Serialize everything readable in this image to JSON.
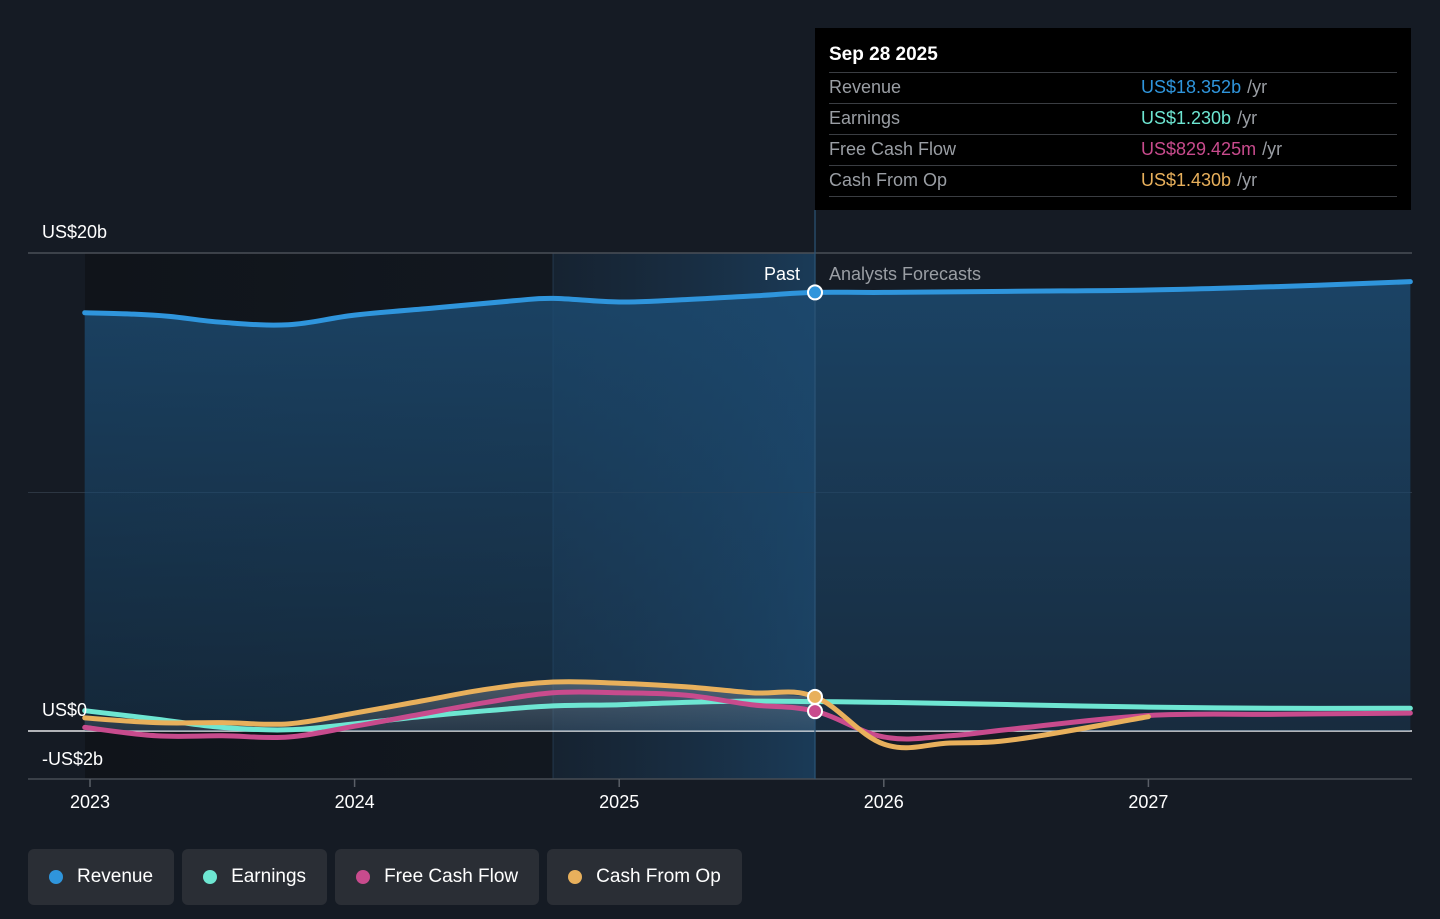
{
  "tooltip": {
    "date": "Sep 28 2025",
    "rows": [
      {
        "label": "Revenue",
        "value": "US$18.352b",
        "unit": "/yr",
        "color": "#2f95dc"
      },
      {
        "label": "Earnings",
        "value": "US$1.230b",
        "unit": "/yr",
        "color": "#6ee6d2"
      },
      {
        "label": "Free Cash Flow",
        "value": "US$829.425m",
        "unit": "/yr",
        "color": "#c84b8d"
      },
      {
        "label": "Cash From Op",
        "value": "US$1.430b",
        "unit": "/yr",
        "color": "#e8b05c"
      }
    ]
  },
  "labels": {
    "past": "Past",
    "forecast": "Analysts Forecasts"
  },
  "legend": [
    {
      "label": "Revenue",
      "color": "#2f95dc"
    },
    {
      "label": "Earnings",
      "color": "#6ee6d2"
    },
    {
      "label": "Free Cash Flow",
      "color": "#c84b8d"
    },
    {
      "label": "Cash From Op",
      "color": "#e8b05c"
    }
  ],
  "chart_data": {
    "type": "line",
    "title": "",
    "xlabel": "",
    "ylabel": "",
    "x_ticks": [
      "2023",
      "2024",
      "2025",
      "2026",
      "2027"
    ],
    "y_ticks": [
      "US$20b",
      "US$0",
      "-US$2b"
    ],
    "y_tick_values": [
      20,
      0,
      -2
    ],
    "ylim": [
      -2,
      20
    ],
    "xlim": [
      2022.98,
      2027.99
    ],
    "past_end": 2025.74,
    "highlight_start": 2024.75,
    "grid": true,
    "units": "US$ billions",
    "series": [
      {
        "name": "Revenue",
        "color": "#2f95dc",
        "x": [
          2022.98,
          2023.15,
          2023.3,
          2023.5,
          2023.75,
          2024.0,
          2024.3,
          2024.6,
          2024.75,
          2025.0,
          2025.25,
          2025.5,
          2025.74,
          2026.0,
          2026.5,
          2027.0,
          2027.5,
          2027.99
        ],
        "y": [
          17.5,
          17.45,
          17.35,
          17.1,
          17.0,
          17.4,
          17.7,
          18.0,
          18.1,
          17.95,
          18.05,
          18.2,
          18.35,
          18.35,
          18.4,
          18.45,
          18.6,
          18.8
        ]
      },
      {
        "name": "Earnings",
        "color": "#6ee6d2",
        "x": [
          2022.98,
          2023.25,
          2023.5,
          2023.75,
          2024.0,
          2024.25,
          2024.5,
          2024.75,
          2025.0,
          2025.25,
          2025.5,
          2025.74,
          2026.0,
          2026.5,
          2027.0,
          2027.5,
          2027.99
        ],
        "y": [
          0.85,
          0.5,
          0.15,
          0.05,
          0.3,
          0.6,
          0.85,
          1.05,
          1.1,
          1.2,
          1.25,
          1.23,
          1.2,
          1.1,
          1.0,
          0.95,
          0.95
        ]
      },
      {
        "name": "Free Cash Flow",
        "color": "#c84b8d",
        "x": [
          2022.98,
          2023.25,
          2023.5,
          2023.75,
          2024.0,
          2024.25,
          2024.5,
          2024.75,
          2025.0,
          2025.25,
          2025.5,
          2025.74,
          2026.0,
          2026.25,
          2026.5,
          2027.0,
          2027.5,
          2027.99
        ],
        "y": [
          0.15,
          -0.2,
          -0.2,
          -0.25,
          0.2,
          0.7,
          1.2,
          1.6,
          1.6,
          1.5,
          1.1,
          0.83,
          -0.25,
          -0.2,
          0.1,
          0.65,
          0.7,
          0.75
        ]
      },
      {
        "name": "Cash From Op",
        "color": "#e8b05c",
        "x": [
          2022.98,
          2023.25,
          2023.5,
          2023.75,
          2024.0,
          2024.25,
          2024.5,
          2024.75,
          2025.0,
          2025.25,
          2025.5,
          2025.74,
          2026.0,
          2026.25,
          2026.5,
          2027.0
        ],
        "y": [
          0.55,
          0.35,
          0.35,
          0.3,
          0.75,
          1.25,
          1.75,
          2.05,
          2.0,
          1.85,
          1.6,
          1.43,
          -0.55,
          -0.5,
          -0.35,
          0.6
        ]
      }
    ]
  }
}
